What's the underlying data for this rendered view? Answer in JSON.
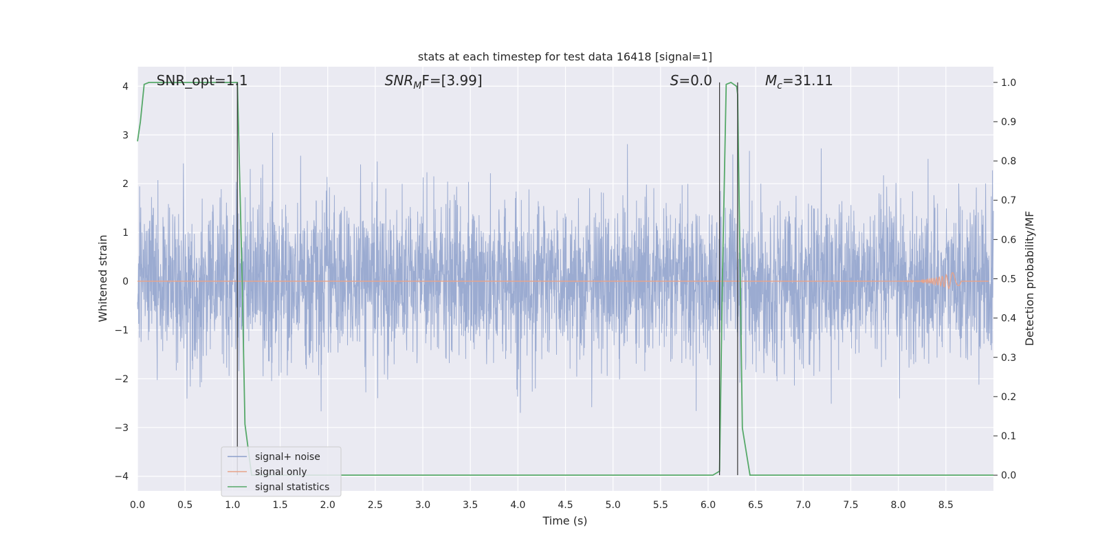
{
  "chart_data": {
    "type": "line",
    "title": "stats at each timestep for test data 16418 [signal=1]",
    "xlabel": "Time (s)",
    "ylabel_left": "Whitened strain",
    "ylabel_right": "Detection probability/MF",
    "xlim": [
      0,
      9.0
    ],
    "ylim_left": [
      -4.3,
      4.4
    ],
    "ylim_right": [
      -0.04,
      1.04
    ],
    "x_ticks": [
      0.0,
      0.5,
      1.0,
      1.5,
      2.0,
      2.5,
      3.0,
      3.5,
      4.0,
      4.5,
      5.0,
      5.5,
      6.0,
      6.5,
      7.0,
      7.5,
      8.0,
      8.5
    ],
    "x_tick_labels": [
      "0.0",
      "0.5",
      "1.0",
      "1.5",
      "2.0",
      "2.5",
      "3.0",
      "3.5",
      "4.0",
      "4.5",
      "5.0",
      "5.5",
      "6.0",
      "6.5",
      "7.0",
      "7.5",
      "8.0",
      "8.5"
    ],
    "y_ticks_left": [
      4,
      3,
      2,
      1,
      0,
      -1,
      -2,
      -3,
      -4
    ],
    "y_tick_labels_left": [
      "4",
      "3",
      "2",
      "1",
      "0",
      "−1",
      "−2",
      "−3",
      "−4"
    ],
    "y_ticks_right": [
      1.0,
      0.9,
      0.8,
      0.7,
      0.6,
      0.5,
      0.4,
      0.3,
      0.2,
      0.1,
      0.0
    ],
    "y_tick_labels_right": [
      "1.0",
      "0.9",
      "0.8",
      "0.7",
      "0.6",
      "0.5",
      "0.4",
      "0.3",
      "0.2",
      "0.1",
      "0.0"
    ],
    "grid": true,
    "legend_position": "lower-left",
    "annotations": [
      {
        "x": 0.2,
        "text": "SNR_opt=1.1",
        "italic": false
      },
      {
        "x": 2.6,
        "base": "SNR",
        "sub": "M",
        "rest": "F=[3.99]",
        "italic": true
      },
      {
        "x": 5.6,
        "base": "S",
        "rest": "=0.0",
        "italic": true
      },
      {
        "x": 6.6,
        "base": "M",
        "sub": "c",
        "rest": "=31.11",
        "italic": true
      }
    ],
    "vertical_lines": [
      1.05,
      6.12,
      6.31
    ],
    "series": [
      {
        "name": "signal+ noise",
        "axis": "left",
        "color": "#8da0cb",
        "description_peaks": "dense white noise, std ~0.8",
        "noise_std": 0.8,
        "noise_seed": 16418,
        "noise_points": 3600
      },
      {
        "name": "signal only",
        "axis": "left",
        "color": "#e8a38a",
        "chirp_start": 7.8,
        "chirp_end": 8.66,
        "chirp_peak": 0.25
      },
      {
        "name": "signal statistics",
        "axis": "right",
        "color": "#55a868",
        "x": [
          0.0,
          0.03,
          0.07,
          0.12,
          0.3,
          0.6,
          0.9,
          1.0,
          1.05,
          1.1,
          1.13,
          1.2,
          1.5,
          2.0,
          3.0,
          4.0,
          5.0,
          5.5,
          5.9,
          6.05,
          6.12,
          6.15,
          6.19,
          6.24,
          6.3,
          6.31,
          6.36,
          6.44,
          6.5,
          7.0,
          8.0,
          9.0
        ],
        "y": [
          0.85,
          0.9,
          0.995,
          1.0,
          1.0,
          1.0,
          1.0,
          1.0,
          1.0,
          0.5,
          0.13,
          0.0,
          0.0,
          0.0,
          0.0,
          0.0,
          0.0,
          0.0,
          0.0,
          0.0,
          0.01,
          0.5,
          0.995,
          1.0,
          0.99,
          0.97,
          0.12,
          0.0,
          0.0,
          0.0,
          0.0,
          0.0
        ]
      }
    ]
  }
}
